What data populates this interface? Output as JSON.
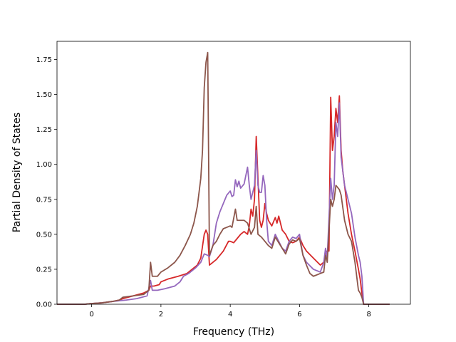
{
  "chart_data": {
    "type": "line",
    "title": "",
    "xlabel": "Frequency (THz)",
    "ylabel": "Partial Density of States",
    "xlim": [
      -1.0,
      9.2
    ],
    "ylim": [
      0.0,
      1.88
    ],
    "xticks": [
      {
        "value": 0,
        "label": "0"
      },
      {
        "value": 2,
        "label": "2"
      },
      {
        "value": 4,
        "label": "4"
      },
      {
        "value": 6,
        "label": "6"
      },
      {
        "value": 8,
        "label": "8"
      }
    ],
    "yticks": [
      {
        "value": 0.0,
        "label": "0.00"
      },
      {
        "value": 0.25,
        "label": "0.25"
      },
      {
        "value": 0.5,
        "label": "0.50"
      },
      {
        "value": 0.75,
        "label": "0.75"
      },
      {
        "value": 1.0,
        "label": "1.00"
      },
      {
        "value": 1.25,
        "label": "1.25"
      },
      {
        "value": 1.5,
        "label": "1.50"
      },
      {
        "value": 1.75,
        "label": "1.75"
      }
    ],
    "grid": false,
    "legend": "none",
    "series": [
      {
        "color": "#d62728",
        "points": [
          [
            -1.0,
            0
          ],
          [
            -0.2,
            0.0
          ],
          [
            0.0,
            0.005
          ],
          [
            0.3,
            0.01
          ],
          [
            0.6,
            0.02
          ],
          [
            0.8,
            0.03
          ],
          [
            0.9,
            0.04
          ],
          [
            1.2,
            0.06
          ],
          [
            1.5,
            0.08
          ],
          [
            1.65,
            0.1
          ],
          [
            1.7,
            0.13
          ],
          [
            1.8,
            0.13
          ],
          [
            1.95,
            0.14
          ],
          [
            2.0,
            0.16
          ],
          [
            2.2,
            0.18
          ],
          [
            2.5,
            0.2
          ],
          [
            2.75,
            0.22
          ],
          [
            2.9,
            0.25
          ],
          [
            3.05,
            0.28
          ],
          [
            3.15,
            0.33
          ],
          [
            3.25,
            0.5
          ],
          [
            3.3,
            0.53
          ],
          [
            3.35,
            0.5
          ],
          [
            3.4,
            0.28
          ],
          [
            3.6,
            0.32
          ],
          [
            3.8,
            0.38
          ],
          [
            3.95,
            0.45
          ],
          [
            4.0,
            0.45
          ],
          [
            4.1,
            0.44
          ],
          [
            4.2,
            0.47
          ],
          [
            4.3,
            0.5
          ],
          [
            4.4,
            0.52
          ],
          [
            4.5,
            0.5
          ],
          [
            4.55,
            0.56
          ],
          [
            4.6,
            0.68
          ],
          [
            4.65,
            0.63
          ],
          [
            4.7,
            0.75
          ],
          [
            4.75,
            1.2
          ],
          [
            4.8,
            0.9
          ],
          [
            4.85,
            0.6
          ],
          [
            4.9,
            0.55
          ],
          [
            4.95,
            0.6
          ],
          [
            5.0,
            0.72
          ],
          [
            5.05,
            0.65
          ],
          [
            5.1,
            0.6
          ],
          [
            5.2,
            0.56
          ],
          [
            5.3,
            0.62
          ],
          [
            5.35,
            0.58
          ],
          [
            5.4,
            0.63
          ],
          [
            5.5,
            0.53
          ],
          [
            5.6,
            0.5
          ],
          [
            5.7,
            0.45
          ],
          [
            5.8,
            0.44
          ],
          [
            5.9,
            0.45
          ],
          [
            6.0,
            0.48
          ],
          [
            6.1,
            0.42
          ],
          [
            6.2,
            0.38
          ],
          [
            6.4,
            0.33
          ],
          [
            6.6,
            0.28
          ],
          [
            6.7,
            0.3
          ],
          [
            6.75,
            0.37
          ],
          [
            6.8,
            0.38
          ],
          [
            6.85,
            0.38
          ],
          [
            6.9,
            1.48
          ],
          [
            6.95,
            1.1
          ],
          [
            7.0,
            1.2
          ],
          [
            7.05,
            1.4
          ],
          [
            7.1,
            1.3
          ],
          [
            7.15,
            1.49
          ],
          [
            7.2,
            1.1
          ],
          [
            7.25,
            0.95
          ],
          [
            7.3,
            0.85
          ],
          [
            7.4,
            0.65
          ],
          [
            7.5,
            0.5
          ],
          [
            7.6,
            0.38
          ],
          [
            7.7,
            0.25
          ],
          [
            7.75,
            0.18
          ],
          [
            7.8,
            0.08
          ],
          [
            7.85,
            0.0
          ],
          [
            8.6,
            0.0
          ]
        ]
      },
      {
        "color": "#9467bd",
        "points": [
          [
            -1.0,
            0
          ],
          [
            -0.2,
            0.0
          ],
          [
            0.0,
            0.005
          ],
          [
            0.3,
            0.01
          ],
          [
            0.6,
            0.02
          ],
          [
            0.8,
            0.025
          ],
          [
            1.0,
            0.03
          ],
          [
            1.3,
            0.04
          ],
          [
            1.6,
            0.06
          ],
          [
            1.7,
            0.17
          ],
          [
            1.75,
            0.1
          ],
          [
            1.9,
            0.1
          ],
          [
            2.1,
            0.11
          ],
          [
            2.4,
            0.13
          ],
          [
            2.55,
            0.16
          ],
          [
            2.65,
            0.2
          ],
          [
            2.8,
            0.22
          ],
          [
            3.0,
            0.26
          ],
          [
            3.15,
            0.3
          ],
          [
            3.25,
            0.36
          ],
          [
            3.35,
            0.35
          ],
          [
            3.4,
            0.34
          ],
          [
            3.5,
            0.42
          ],
          [
            3.6,
            0.58
          ],
          [
            3.7,
            0.66
          ],
          [
            3.8,
            0.72
          ],
          [
            3.9,
            0.78
          ],
          [
            4.0,
            0.81
          ],
          [
            4.05,
            0.77
          ],
          [
            4.1,
            0.78
          ],
          [
            4.15,
            0.89
          ],
          [
            4.2,
            0.84
          ],
          [
            4.25,
            0.88
          ],
          [
            4.3,
            0.83
          ],
          [
            4.4,
            0.86
          ],
          [
            4.5,
            0.98
          ],
          [
            4.55,
            0.85
          ],
          [
            4.6,
            0.75
          ],
          [
            4.7,
            0.85
          ],
          [
            4.75,
            1.1
          ],
          [
            4.8,
            0.85
          ],
          [
            4.85,
            0.8
          ],
          [
            4.9,
            0.8
          ],
          [
            4.95,
            0.92
          ],
          [
            5.0,
            0.85
          ],
          [
            5.05,
            0.6
          ],
          [
            5.1,
            0.45
          ],
          [
            5.2,
            0.42
          ],
          [
            5.3,
            0.5
          ],
          [
            5.4,
            0.45
          ],
          [
            5.5,
            0.4
          ],
          [
            5.6,
            0.38
          ],
          [
            5.7,
            0.45
          ],
          [
            5.8,
            0.48
          ],
          [
            5.9,
            0.47
          ],
          [
            6.0,
            0.5
          ],
          [
            6.05,
            0.42
          ],
          [
            6.1,
            0.35
          ],
          [
            6.2,
            0.3
          ],
          [
            6.4,
            0.25
          ],
          [
            6.6,
            0.23
          ],
          [
            6.7,
            0.3
          ],
          [
            6.75,
            0.4
          ],
          [
            6.8,
            0.33
          ],
          [
            6.9,
            0.9
          ],
          [
            6.95,
            0.75
          ],
          [
            7.0,
            0.85
          ],
          [
            7.05,
            1.3
          ],
          [
            7.1,
            1.2
          ],
          [
            7.15,
            1.44
          ],
          [
            7.2,
            1.05
          ],
          [
            7.3,
            0.85
          ],
          [
            7.4,
            0.75
          ],
          [
            7.5,
            0.65
          ],
          [
            7.6,
            0.48
          ],
          [
            7.7,
            0.35
          ],
          [
            7.75,
            0.3
          ],
          [
            7.8,
            0.2
          ],
          [
            7.85,
            0.0
          ],
          [
            8.6,
            0.0
          ]
        ]
      },
      {
        "color": "#8c564b",
        "points": [
          [
            -1.0,
            0
          ],
          [
            -0.2,
            0.0
          ],
          [
            0.0,
            0.005
          ],
          [
            0.3,
            0.01
          ],
          [
            0.6,
            0.02
          ],
          [
            0.8,
            0.03
          ],
          [
            0.9,
            0.05
          ],
          [
            1.2,
            0.06
          ],
          [
            1.5,
            0.07
          ],
          [
            1.65,
            0.1
          ],
          [
            1.7,
            0.3
          ],
          [
            1.75,
            0.2
          ],
          [
            1.9,
            0.2
          ],
          [
            2.0,
            0.23
          ],
          [
            2.2,
            0.26
          ],
          [
            2.4,
            0.3
          ],
          [
            2.55,
            0.35
          ],
          [
            2.7,
            0.42
          ],
          [
            2.85,
            0.5
          ],
          [
            2.95,
            0.58
          ],
          [
            3.05,
            0.7
          ],
          [
            3.15,
            0.9
          ],
          [
            3.2,
            1.1
          ],
          [
            3.25,
            1.55
          ],
          [
            3.3,
            1.73
          ],
          [
            3.35,
            1.8
          ],
          [
            3.4,
            0.35
          ],
          [
            3.5,
            0.42
          ],
          [
            3.6,
            0.45
          ],
          [
            3.7,
            0.5
          ],
          [
            3.8,
            0.54
          ],
          [
            3.9,
            0.55
          ],
          [
            4.0,
            0.56
          ],
          [
            4.05,
            0.55
          ],
          [
            4.15,
            0.68
          ],
          [
            4.2,
            0.6
          ],
          [
            4.3,
            0.6
          ],
          [
            4.4,
            0.6
          ],
          [
            4.5,
            0.58
          ],
          [
            4.6,
            0.5
          ],
          [
            4.7,
            0.55
          ],
          [
            4.75,
            0.7
          ],
          [
            4.8,
            0.5
          ],
          [
            4.9,
            0.48
          ],
          [
            5.0,
            0.45
          ],
          [
            5.1,
            0.42
          ],
          [
            5.2,
            0.4
          ],
          [
            5.3,
            0.48
          ],
          [
            5.4,
            0.44
          ],
          [
            5.5,
            0.4
          ],
          [
            5.6,
            0.36
          ],
          [
            5.7,
            0.43
          ],
          [
            5.8,
            0.46
          ],
          [
            5.9,
            0.45
          ],
          [
            6.0,
            0.47
          ],
          [
            6.1,
            0.35
          ],
          [
            6.2,
            0.28
          ],
          [
            6.3,
            0.22
          ],
          [
            6.4,
            0.2
          ],
          [
            6.6,
            0.22
          ],
          [
            6.7,
            0.23
          ],
          [
            6.75,
            0.35
          ],
          [
            6.8,
            0.3
          ],
          [
            6.9,
            0.75
          ],
          [
            6.95,
            0.7
          ],
          [
            7.0,
            0.75
          ],
          [
            7.05,
            0.85
          ],
          [
            7.15,
            0.82
          ],
          [
            7.2,
            0.78
          ],
          [
            7.3,
            0.6
          ],
          [
            7.4,
            0.5
          ],
          [
            7.5,
            0.45
          ],
          [
            7.6,
            0.3
          ],
          [
            7.7,
            0.1
          ],
          [
            7.75,
            0.08
          ],
          [
            7.8,
            0.05
          ],
          [
            7.85,
            0.0
          ],
          [
            8.6,
            0.0
          ]
        ]
      }
    ]
  }
}
